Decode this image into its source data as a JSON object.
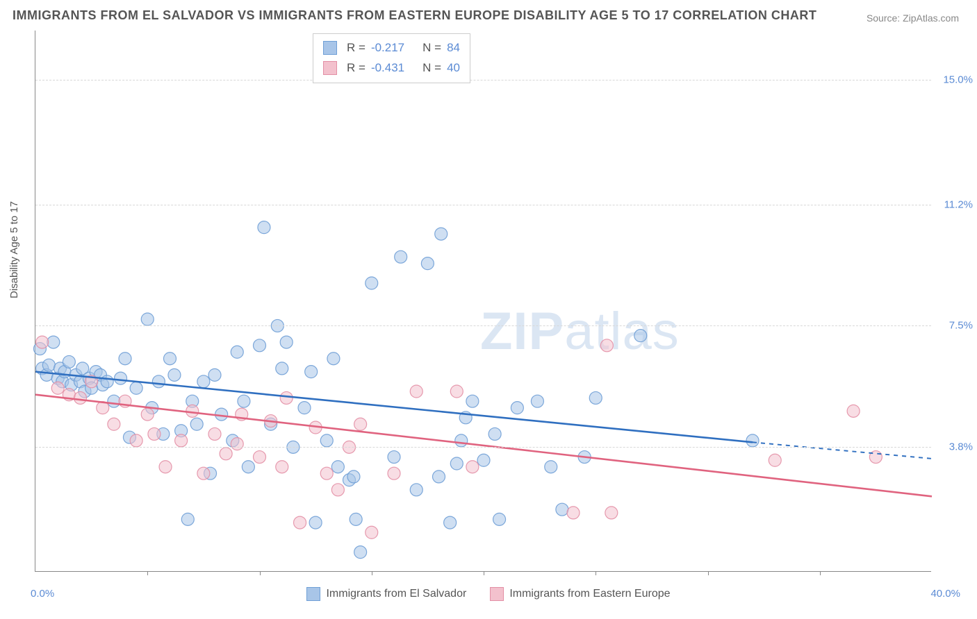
{
  "title": "IMMIGRANTS FROM EL SALVADOR VS IMMIGRANTS FROM EASTERN EUROPE DISABILITY AGE 5 TO 17 CORRELATION CHART",
  "source_prefix": "Source: ",
  "source_name": "ZipAtlas.com",
  "y_axis_label": "Disability Age 5 to 17",
  "watermark_bold": "ZIP",
  "watermark_light": "atlas",
  "chart": {
    "type": "scatter",
    "background_color": "#ffffff",
    "grid_color": "#d8d8d8",
    "axis_color": "#888888",
    "xlim": [
      0.0,
      40.0
    ],
    "ylim": [
      0.0,
      16.5
    ],
    "x_min_label": "0.0%",
    "x_max_label": "40.0%",
    "x_tick_positions": [
      5,
      10,
      15,
      20,
      25,
      30,
      35
    ],
    "y_gridlines": [
      3.8,
      7.5,
      11.2,
      15.0
    ],
    "y_tick_labels": [
      "3.8%",
      "7.5%",
      "11.2%",
      "15.0%"
    ],
    "y_tick_color": "#5b8bd4",
    "marker_radius": 9,
    "marker_opacity": 0.55,
    "marker_stroke_opacity": 0.9,
    "line_width": 2.6,
    "series": [
      {
        "name": "Immigrants from El Salvador",
        "color_fill": "#a8c5e8",
        "color_stroke": "#6f9fd6",
        "line_color": "#2f6fc0",
        "R": "-0.217",
        "N": "84",
        "trend": {
          "x1": 0.0,
          "y1": 6.1,
          "x2": 32.0,
          "y2": 3.95,
          "dash_to_x": 40.0,
          "dash_to_y": 3.45
        },
        "points": [
          [
            0.2,
            6.8
          ],
          [
            0.3,
            6.2
          ],
          [
            0.5,
            6.0
          ],
          [
            0.6,
            6.3
          ],
          [
            0.8,
            7.0
          ],
          [
            1.0,
            5.9
          ],
          [
            1.1,
            6.2
          ],
          [
            1.2,
            5.8
          ],
          [
            1.3,
            6.1
          ],
          [
            1.5,
            6.4
          ],
          [
            1.6,
            5.7
          ],
          [
            1.8,
            6.0
          ],
          [
            2.0,
            5.8
          ],
          [
            2.1,
            6.2
          ],
          [
            2.2,
            5.5
          ],
          [
            2.4,
            5.9
          ],
          [
            2.5,
            5.6
          ],
          [
            2.7,
            6.1
          ],
          [
            2.9,
            6.0
          ],
          [
            3.0,
            5.7
          ],
          [
            3.2,
            5.8
          ],
          [
            3.5,
            5.2
          ],
          [
            3.8,
            5.9
          ],
          [
            4.0,
            6.5
          ],
          [
            4.2,
            4.1
          ],
          [
            4.5,
            5.6
          ],
          [
            5.0,
            7.7
          ],
          [
            5.2,
            5.0
          ],
          [
            5.5,
            5.8
          ],
          [
            5.7,
            4.2
          ],
          [
            6.0,
            6.5
          ],
          [
            6.2,
            6.0
          ],
          [
            6.5,
            4.3
          ],
          [
            6.8,
            1.6
          ],
          [
            7.0,
            5.2
          ],
          [
            7.2,
            4.5
          ],
          [
            7.5,
            5.8
          ],
          [
            7.8,
            3.0
          ],
          [
            8.0,
            6.0
          ],
          [
            8.3,
            4.8
          ],
          [
            8.8,
            4.0
          ],
          [
            9.0,
            6.7
          ],
          [
            9.3,
            5.2
          ],
          [
            9.5,
            3.2
          ],
          [
            10.0,
            6.9
          ],
          [
            10.2,
            10.5
          ],
          [
            10.5,
            4.5
          ],
          [
            10.8,
            7.5
          ],
          [
            11.0,
            6.2
          ],
          [
            11.2,
            7.0
          ],
          [
            11.5,
            3.8
          ],
          [
            12.0,
            5.0
          ],
          [
            12.3,
            6.1
          ],
          [
            12.5,
            1.5
          ],
          [
            13.0,
            4.0
          ],
          [
            13.3,
            6.5
          ],
          [
            13.5,
            3.2
          ],
          [
            14.0,
            2.8
          ],
          [
            14.2,
            2.9
          ],
          [
            14.3,
            1.6
          ],
          [
            14.5,
            0.6
          ],
          [
            15.0,
            8.8
          ],
          [
            16.0,
            3.5
          ],
          [
            16.3,
            9.6
          ],
          [
            17.0,
            2.5
          ],
          [
            17.5,
            9.4
          ],
          [
            18.0,
            2.9
          ],
          [
            18.1,
            10.3
          ],
          [
            18.5,
            1.5
          ],
          [
            18.8,
            3.3
          ],
          [
            19.0,
            4.0
          ],
          [
            19.2,
            4.7
          ],
          [
            19.5,
            5.2
          ],
          [
            20.0,
            3.4
          ],
          [
            20.5,
            4.2
          ],
          [
            20.7,
            1.6
          ],
          [
            21.5,
            5.0
          ],
          [
            22.4,
            5.2
          ],
          [
            23.0,
            3.2
          ],
          [
            23.5,
            1.9
          ],
          [
            24.5,
            3.5
          ],
          [
            25.0,
            5.3
          ],
          [
            27.0,
            7.2
          ],
          [
            32.0,
            4.0
          ]
        ]
      },
      {
        "name": "Immigrants from Eastern Europe",
        "color_fill": "#f3c1cd",
        "color_stroke": "#e38fa5",
        "line_color": "#e0637f",
        "R": "-0.431",
        "N": "40",
        "trend": {
          "x1": 0.0,
          "y1": 5.4,
          "x2": 40.0,
          "y2": 2.3,
          "dash_to_x": null,
          "dash_to_y": null
        },
        "points": [
          [
            0.3,
            7.0
          ],
          [
            1.0,
            5.6
          ],
          [
            1.5,
            5.4
          ],
          [
            2.0,
            5.3
          ],
          [
            2.5,
            5.8
          ],
          [
            3.0,
            5.0
          ],
          [
            3.5,
            4.5
          ],
          [
            4.0,
            5.2
          ],
          [
            4.5,
            4.0
          ],
          [
            5.0,
            4.8
          ],
          [
            5.3,
            4.2
          ],
          [
            5.8,
            3.2
          ],
          [
            6.5,
            4.0
          ],
          [
            7.0,
            4.9
          ],
          [
            7.5,
            3.0
          ],
          [
            8.0,
            4.2
          ],
          [
            8.5,
            3.6
          ],
          [
            9.0,
            3.9
          ],
          [
            9.2,
            4.8
          ],
          [
            10.0,
            3.5
          ],
          [
            10.5,
            4.6
          ],
          [
            11.0,
            3.2
          ],
          [
            11.2,
            5.3
          ],
          [
            11.8,
            1.5
          ],
          [
            12.5,
            4.4
          ],
          [
            13.0,
            3.0
          ],
          [
            13.5,
            2.5
          ],
          [
            14.0,
            3.8
          ],
          [
            14.5,
            4.5
          ],
          [
            15.0,
            1.2
          ],
          [
            16.0,
            3.0
          ],
          [
            17.0,
            5.5
          ],
          [
            18.8,
            5.5
          ],
          [
            19.5,
            3.2
          ],
          [
            24.0,
            1.8
          ],
          [
            25.5,
            6.9
          ],
          [
            25.7,
            1.8
          ],
          [
            33.0,
            3.4
          ],
          [
            36.5,
            4.9
          ],
          [
            37.5,
            3.5
          ]
        ]
      }
    ]
  },
  "stats_box": {
    "R_label": "R =",
    "N_label": "N ="
  },
  "bottom_legend_labels": [
    "Immigrants from El Salvador",
    "Immigrants from Eastern Europe"
  ]
}
